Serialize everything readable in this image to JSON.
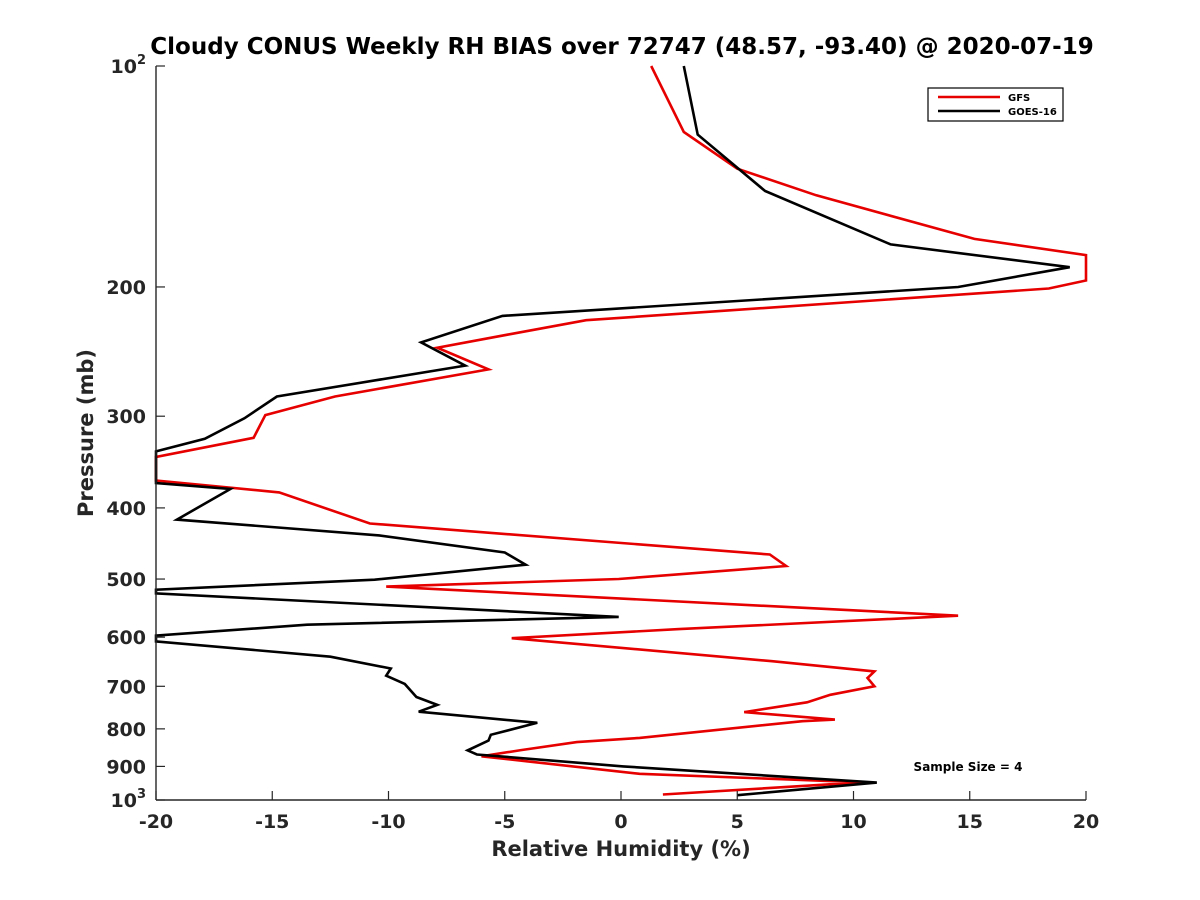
{
  "chart_data": {
    "type": "line",
    "title": "Cloudy CONUS Weekly RH BIAS over 72747 (48.57, -93.40) @ 2020-07-19",
    "xlabel": "Relative Humidity (%)",
    "ylabel": "Pressure (mb)",
    "xlim": [
      -20,
      20
    ],
    "ylim": [
      100,
      1000
    ],
    "yscale": "log",
    "y_reversed": true,
    "grid": false,
    "legend_position": "top-right",
    "annotation": "Sample Size = 4",
    "x_ticks": [
      {
        "value": -20,
        "label": "-20"
      },
      {
        "value": -15,
        "label": "-15"
      },
      {
        "value": -10,
        "label": "-10"
      },
      {
        "value": -5,
        "label": "-5"
      },
      {
        "value": 0,
        "label": "0"
      },
      {
        "value": 5,
        "label": "5"
      },
      {
        "value": 10,
        "label": "10"
      },
      {
        "value": 15,
        "label": "15"
      },
      {
        "value": 20,
        "label": "20"
      }
    ],
    "y_ticks": [
      {
        "value": 100,
        "base": "10",
        "exp": "2"
      },
      {
        "value": 200,
        "label": "200"
      },
      {
        "value": 300,
        "label": "300"
      },
      {
        "value": 400,
        "label": "400"
      },
      {
        "value": 500,
        "label": "500"
      },
      {
        "value": 600,
        "label": "600"
      },
      {
        "value": 700,
        "label": "700"
      },
      {
        "value": 800,
        "label": "800"
      },
      {
        "value": 900,
        "label": "900"
      },
      {
        "value": 1000,
        "base": "10",
        "exp": "3"
      }
    ],
    "series": [
      {
        "name": "GFS",
        "color": "#e60000",
        "points": [
          {
            "x": 1.3,
            "p": 100
          },
          {
            "x": 2.7,
            "p": 123
          },
          {
            "x": 5.0,
            "p": 138
          },
          {
            "x": 8.4,
            "p": 150
          },
          {
            "x": 15.2,
            "p": 172
          },
          {
            "x": 20.0,
            "p": 181
          },
          {
            "x": 20.0,
            "p": 196
          },
          {
            "x": 18.4,
            "p": 201
          },
          {
            "x": -1.5,
            "p": 222
          },
          {
            "x": -4.8,
            "p": 232
          },
          {
            "x": -7.9,
            "p": 242
          },
          {
            "x": -5.7,
            "p": 259
          },
          {
            "x": -12.3,
            "p": 282
          },
          {
            "x": -15.3,
            "p": 299
          },
          {
            "x": -15.8,
            "p": 321
          },
          {
            "x": -20.0,
            "p": 341
          },
          {
            "x": -20.0,
            "p": 367
          },
          {
            "x": -14.7,
            "p": 381
          },
          {
            "x": -10.8,
            "p": 420
          },
          {
            "x": 6.4,
            "p": 463
          },
          {
            "x": 7.1,
            "p": 480
          },
          {
            "x": -0.1,
            "p": 500
          },
          {
            "x": -10.1,
            "p": 512
          },
          {
            "x": 14.5,
            "p": 561
          },
          {
            "x": 2.5,
            "p": 585
          },
          {
            "x": -4.7,
            "p": 602
          },
          {
            "x": 6.5,
            "p": 647
          },
          {
            "x": 10.9,
            "p": 668
          },
          {
            "x": 10.6,
            "p": 682
          },
          {
            "x": 10.9,
            "p": 700
          },
          {
            "x": 9.0,
            "p": 719
          },
          {
            "x": 8.0,
            "p": 736
          },
          {
            "x": 5.3,
            "p": 759
          },
          {
            "x": 9.2,
            "p": 777
          },
          {
            "x": 7.8,
            "p": 781
          },
          {
            "x": 0.8,
            "p": 823
          },
          {
            "x": -1.9,
            "p": 834
          },
          {
            "x": -4.3,
            "p": 855
          },
          {
            "x": -6.0,
            "p": 872
          },
          {
            "x": 0.8,
            "p": 921
          },
          {
            "x": 10.4,
            "p": 946
          },
          {
            "x": 1.8,
            "p": 983
          }
        ]
      },
      {
        "name": "GOES-16",
        "color": "#000000",
        "points": [
          {
            "x": 2.7,
            "p": 100
          },
          {
            "x": 3.3,
            "p": 124
          },
          {
            "x": 6.2,
            "p": 148
          },
          {
            "x": 11.6,
            "p": 175
          },
          {
            "x": 19.3,
            "p": 188
          },
          {
            "x": 14.5,
            "p": 200
          },
          {
            "x": -5.1,
            "p": 219
          },
          {
            "x": -8.6,
            "p": 238
          },
          {
            "x": -6.7,
            "p": 256
          },
          {
            "x": -14.8,
            "p": 282
          },
          {
            "x": -16.2,
            "p": 302
          },
          {
            "x": -17.9,
            "p": 322
          },
          {
            "x": -20.0,
            "p": 335
          },
          {
            "x": -20.0,
            "p": 370
          },
          {
            "x": -16.8,
            "p": 377
          },
          {
            "x": -19.1,
            "p": 415
          },
          {
            "x": -10.4,
            "p": 436
          },
          {
            "x": -5.0,
            "p": 460
          },
          {
            "x": -4.1,
            "p": 478
          },
          {
            "x": -10.6,
            "p": 501
          },
          {
            "x": -20.0,
            "p": 517
          },
          {
            "x": -20.0,
            "p": 523
          },
          {
            "x": -0.1,
            "p": 563
          },
          {
            "x": -13.5,
            "p": 577
          },
          {
            "x": -20.0,
            "p": 597
          },
          {
            "x": -20.0,
            "p": 608
          },
          {
            "x": -12.5,
            "p": 638
          },
          {
            "x": -9.9,
            "p": 662
          },
          {
            "x": -10.1,
            "p": 677
          },
          {
            "x": -9.3,
            "p": 695
          },
          {
            "x": -8.8,
            "p": 724
          },
          {
            "x": -7.9,
            "p": 742
          },
          {
            "x": -8.7,
            "p": 758
          },
          {
            "x": -3.6,
            "p": 785
          },
          {
            "x": -5.6,
            "p": 815
          },
          {
            "x": -5.7,
            "p": 830
          },
          {
            "x": -6.6,
            "p": 856
          },
          {
            "x": -6.2,
            "p": 867
          },
          {
            "x": 0.1,
            "p": 900
          },
          {
            "x": 11.0,
            "p": 947
          },
          {
            "x": 5.0,
            "p": 985
          }
        ]
      }
    ]
  }
}
